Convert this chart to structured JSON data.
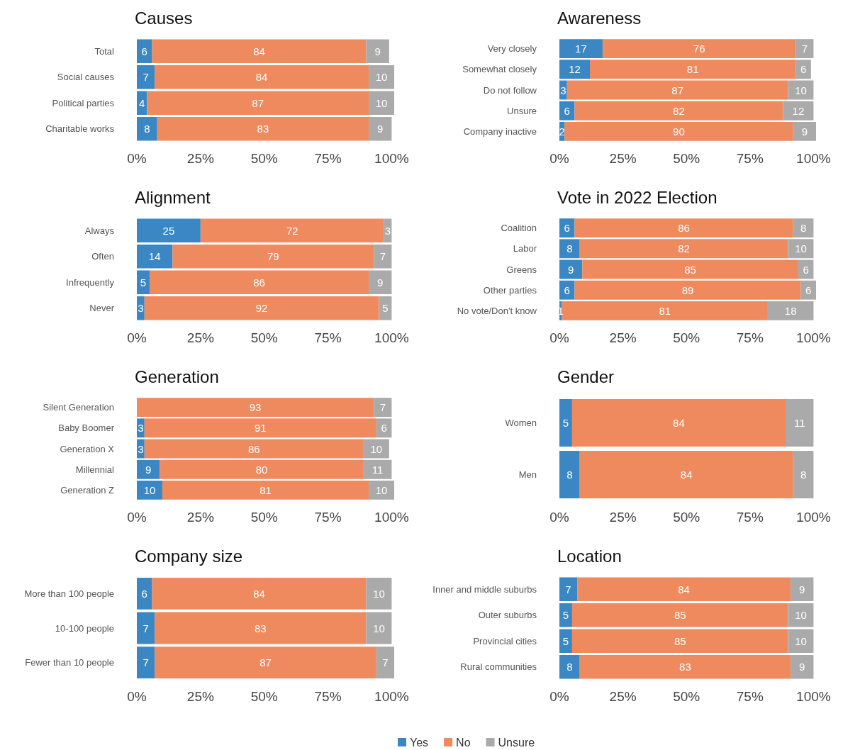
{
  "chart_data": [
    {
      "type": "bar",
      "title": "Causes",
      "orientation": "horizontal",
      "stacked": true,
      "data_labels": true,
      "categories": [
        "Total",
        "Social causes",
        "Political parties",
        "Charitable works"
      ],
      "series": [
        {
          "color": "#3a87c4",
          "values": [
            6,
            7,
            4,
            8
          ]
        },
        {
          "color": "#ef8a5f",
          "values": [
            84,
            84,
            87,
            83
          ]
        },
        {
          "color": "#aaaaaa",
          "values": [
            9,
            10,
            10,
            9
          ]
        }
      ],
      "xlim": [
        0,
        101
      ],
      "xticks": [
        {
          "value": 0,
          "label": "0%"
        },
        {
          "value": 25,
          "label": "25%"
        },
        {
          "value": 50,
          "label": "50%"
        },
        {
          "value": 75,
          "label": "75%"
        },
        {
          "value": 100,
          "label": "100%"
        }
      ]
    },
    {
      "type": "bar",
      "title": "Awareness",
      "orientation": "horizontal",
      "stacked": true,
      "data_labels": true,
      "categories": [
        "Very closely",
        "Somewhat closely",
        "Do not follow",
        "Unsure",
        "Company inactive"
      ],
      "series": [
        {
          "color": "#3a87c4",
          "values": [
            17,
            12,
            3,
            6,
            2
          ]
        },
        {
          "color": "#ef8a5f",
          "values": [
            76,
            81,
            87,
            82,
            90
          ]
        },
        {
          "color": "#aaaaaa",
          "values": [
            7,
            6,
            10,
            12,
            9
          ]
        }
      ],
      "xlim": [
        0,
        101
      ],
      "xticks": [
        {
          "value": 0,
          "label": "0%"
        },
        {
          "value": 25,
          "label": "25%"
        },
        {
          "value": 50,
          "label": "50%"
        },
        {
          "value": 75,
          "label": "75%"
        },
        {
          "value": 100,
          "label": "100%"
        }
      ]
    },
    {
      "type": "bar",
      "title": "Alignment",
      "orientation": "horizontal",
      "stacked": true,
      "data_labels": true,
      "categories": [
        "Always",
        "Often",
        "Infrequently",
        "Never"
      ],
      "series": [
        {
          "color": "#3a87c4",
          "values": [
            25,
            14,
            5,
            3
          ]
        },
        {
          "color": "#ef8a5f",
          "values": [
            72,
            79,
            86,
            92
          ]
        },
        {
          "color": "#aaaaaa",
          "values": [
            3,
            7,
            9,
            5
          ]
        }
      ],
      "xlim": [
        0,
        101
      ],
      "xticks": [
        {
          "value": 0,
          "label": "0%"
        },
        {
          "value": 25,
          "label": "25%"
        },
        {
          "value": 50,
          "label": "50%"
        },
        {
          "value": 75,
          "label": "75%"
        },
        {
          "value": 100,
          "label": "100%"
        }
      ]
    },
    {
      "type": "bar",
      "title": "Vote in 2022 Election",
      "orientation": "horizontal",
      "stacked": true,
      "data_labels": true,
      "categories": [
        "Coalition",
        "Labor",
        "Greens",
        "Other parties",
        "No vote/Don't know"
      ],
      "series": [
        {
          "color": "#3a87c4",
          "values": [
            6,
            8,
            9,
            6,
            1
          ]
        },
        {
          "color": "#ef8a5f",
          "values": [
            86,
            82,
            85,
            89,
            81
          ]
        },
        {
          "color": "#aaaaaa",
          "values": [
            8,
            10,
            6,
            6,
            18
          ]
        }
      ],
      "xlim": [
        0,
        101
      ],
      "xticks": [
        {
          "value": 0,
          "label": "0%"
        },
        {
          "value": 25,
          "label": "25%"
        },
        {
          "value": 50,
          "label": "50%"
        },
        {
          "value": 75,
          "label": "75%"
        },
        {
          "value": 100,
          "label": "100%"
        }
      ]
    },
    {
      "type": "bar",
      "title": "Generation",
      "orientation": "horizontal",
      "stacked": true,
      "data_labels": true,
      "categories": [
        "Silent Generation",
        "Baby Boomer",
        "Generation X",
        "Millennial",
        "Generation Z"
      ],
      "series": [
        {
          "color": "#3a87c4",
          "values": [
            null,
            3,
            3,
            9,
            10
          ]
        },
        {
          "color": "#ef8a5f",
          "values": [
            93,
            91,
            86,
            80,
            81
          ]
        },
        {
          "color": "#aaaaaa",
          "values": [
            7,
            6,
            10,
            11,
            10
          ]
        }
      ],
      "xlim": [
        0,
        101
      ],
      "xticks": [
        {
          "value": 0,
          "label": "0%"
        },
        {
          "value": 25,
          "label": "25%"
        },
        {
          "value": 50,
          "label": "50%"
        },
        {
          "value": 75,
          "label": "75%"
        },
        {
          "value": 100,
          "label": "100%"
        }
      ]
    },
    {
      "type": "bar",
      "title": "Gender",
      "orientation": "horizontal",
      "stacked": true,
      "data_labels": true,
      "categories": [
        "Women",
        "Men"
      ],
      "series": [
        {
          "color": "#3a87c4",
          "values": [
            5,
            8
          ]
        },
        {
          "color": "#ef8a5f",
          "values": [
            84,
            84
          ]
        },
        {
          "color": "#aaaaaa",
          "values": [
            11,
            8
          ]
        }
      ],
      "xlim": [
        0,
        101
      ],
      "xticks": [
        {
          "value": 0,
          "label": "0%"
        },
        {
          "value": 25,
          "label": "25%"
        },
        {
          "value": 50,
          "label": "50%"
        },
        {
          "value": 75,
          "label": "75%"
        },
        {
          "value": 100,
          "label": "100%"
        }
      ]
    },
    {
      "type": "bar",
      "title": "Company size",
      "orientation": "horizontal",
      "stacked": true,
      "data_labels": true,
      "categories": [
        "More than 100 people",
        "10-100 people",
        "Fewer than 10 people"
      ],
      "series": [
        {
          "color": "#3a87c4",
          "values": [
            6,
            7,
            7
          ]
        },
        {
          "color": "#ef8a5f",
          "values": [
            84,
            83,
            87
          ]
        },
        {
          "color": "#aaaaaa",
          "values": [
            10,
            10,
            7
          ]
        }
      ],
      "xlim": [
        0,
        101
      ],
      "xticks": [
        {
          "value": 0,
          "label": "0%"
        },
        {
          "value": 25,
          "label": "25%"
        },
        {
          "value": 50,
          "label": "50%"
        },
        {
          "value": 75,
          "label": "75%"
        },
        {
          "value": 100,
          "label": "100%"
        }
      ]
    },
    {
      "type": "bar",
      "title": "Location",
      "orientation": "horizontal",
      "stacked": true,
      "data_labels": true,
      "legend": "bottom",
      "categories": [
        "Inner and middle suburbs",
        "Outer suburbs",
        "Provincial cities",
        "Rural communities"
      ],
      "series": [
        {
          "name": "Yes",
          "color": "#3a87c4",
          "values": [
            7,
            5,
            5,
            8
          ]
        },
        {
          "name": "No",
          "color": "#ef8a5f",
          "values": [
            84,
            85,
            85,
            83
          ]
        },
        {
          "name": "Unsure",
          "color": "#aaaaaa",
          "values": [
            9,
            10,
            10,
            9
          ]
        }
      ],
      "xlim": [
        0,
        101
      ],
      "xticks": [
        {
          "value": 0,
          "label": "0%"
        },
        {
          "value": 25,
          "label": "25%"
        },
        {
          "value": 50,
          "label": "50%"
        },
        {
          "value": 75,
          "label": "75%"
        },
        {
          "value": 100,
          "label": "100%"
        }
      ]
    }
  ]
}
